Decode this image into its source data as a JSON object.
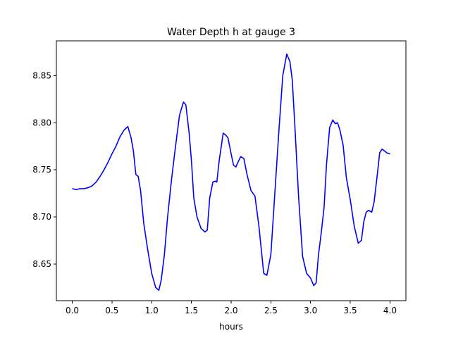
{
  "chart_data": {
    "type": "line",
    "title": "Water Depth h at gauge 3",
    "xlabel": "hours",
    "ylabel": "",
    "xlim": [
      -0.2,
      4.2
    ],
    "ylim": [
      8.611,
      8.887
    ],
    "xticks": [
      0.0,
      0.5,
      1.0,
      1.5,
      2.0,
      2.5,
      3.0,
      3.5,
      4.0
    ],
    "xtick_labels": [
      "0.0",
      "0.5",
      "1.0",
      "1.5",
      "2.0",
      "2.5",
      "3.0",
      "3.5",
      "4.0"
    ],
    "yticks": [
      8.65,
      8.7,
      8.75,
      8.8,
      8.85
    ],
    "ytick_labels": [
      "8.65",
      "8.70",
      "8.75",
      "8.80",
      "8.85"
    ],
    "grid": false,
    "series": [
      {
        "color": "#0000ff",
        "x": [
          0.0,
          0.05,
          0.1,
          0.15,
          0.2,
          0.25,
          0.3,
          0.35,
          0.4,
          0.45,
          0.5,
          0.55,
          0.6,
          0.65,
          0.7,
          0.74,
          0.77,
          0.8,
          0.83,
          0.86,
          0.9,
          0.95,
          1.0,
          1.05,
          1.09,
          1.12,
          1.16,
          1.2,
          1.25,
          1.3,
          1.35,
          1.4,
          1.43,
          1.47,
          1.5,
          1.53,
          1.57,
          1.62,
          1.67,
          1.7,
          1.73,
          1.77,
          1.8,
          1.82,
          1.85,
          1.9,
          1.93,
          1.96,
          2.0,
          2.03,
          2.06,
          2.08,
          2.12,
          2.16,
          2.2,
          2.25,
          2.3,
          2.35,
          2.38,
          2.41,
          2.45,
          2.5,
          2.55,
          2.6,
          2.65,
          2.7,
          2.74,
          2.77,
          2.8,
          2.85,
          2.9,
          2.95,
          3.0,
          3.04,
          3.07,
          3.1,
          3.13,
          3.17,
          3.2,
          3.24,
          3.28,
          3.31,
          3.34,
          3.37,
          3.41,
          3.45,
          3.5,
          3.55,
          3.6,
          3.64,
          3.67,
          3.7,
          3.73,
          3.77,
          3.8,
          3.84,
          3.87,
          3.9,
          3.93,
          3.96,
          4.0
        ],
        "y": [
          8.73,
          8.729,
          8.73,
          8.73,
          8.731,
          8.733,
          8.737,
          8.743,
          8.75,
          8.758,
          8.767,
          8.775,
          8.785,
          8.792,
          8.796,
          8.784,
          8.77,
          8.745,
          8.743,
          8.728,
          8.693,
          8.665,
          8.64,
          8.625,
          8.622,
          8.633,
          8.66,
          8.7,
          8.74,
          8.775,
          8.808,
          8.822,
          8.819,
          8.79,
          8.76,
          8.72,
          8.7,
          8.688,
          8.684,
          8.686,
          8.72,
          8.737,
          8.738,
          8.737,
          8.76,
          8.789,
          8.787,
          8.784,
          8.767,
          8.755,
          8.753,
          8.757,
          8.764,
          8.762,
          8.745,
          8.728,
          8.722,
          8.69,
          8.665,
          8.64,
          8.638,
          8.66,
          8.725,
          8.79,
          8.85,
          8.873,
          8.865,
          8.845,
          8.8,
          8.72,
          8.658,
          8.64,
          8.635,
          8.627,
          8.63,
          8.66,
          8.68,
          8.71,
          8.755,
          8.795,
          8.803,
          8.799,
          8.8,
          8.792,
          8.776,
          8.742,
          8.718,
          8.69,
          8.672,
          8.675,
          8.695,
          8.705,
          8.707,
          8.705,
          8.716,
          8.745,
          8.768,
          8.772,
          8.77,
          8.768,
          8.767
        ]
      }
    ]
  }
}
